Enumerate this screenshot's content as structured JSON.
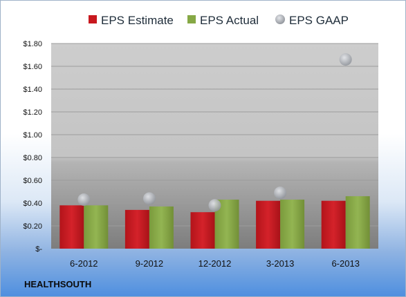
{
  "chart_data": {
    "type": "bar",
    "categories": [
      "6-2012",
      "9-2012",
      "12-2012",
      "3-2013",
      "6-2013"
    ],
    "series": [
      {
        "name": "EPS Estimate",
        "values": [
          0.38,
          0.34,
          0.32,
          0.42,
          0.42
        ],
        "color": "#c8181e"
      },
      {
        "name": "EPS Actual",
        "values": [
          0.38,
          0.37,
          0.43,
          0.43,
          0.46
        ],
        "color": "#86a845"
      },
      {
        "name": "EPS GAAP",
        "values": [
          0.43,
          0.44,
          0.38,
          0.49,
          1.66
        ],
        "color": "#b8bcc2",
        "style": "scatter"
      }
    ],
    "ylim": [
      0,
      1.8
    ],
    "yticks": [
      0,
      0.2,
      0.4,
      0.6,
      0.8,
      1.0,
      1.2,
      1.4,
      1.6,
      1.8
    ],
    "ytick_labels": [
      "$-",
      "$0.20",
      "$0.40",
      "$0.60",
      "$0.80",
      "$1.00",
      "$1.20",
      "$1.40",
      "$1.60",
      "$1.80"
    ],
    "legend_position": "top",
    "grid": true
  },
  "company": "HEALTHSOUTH"
}
